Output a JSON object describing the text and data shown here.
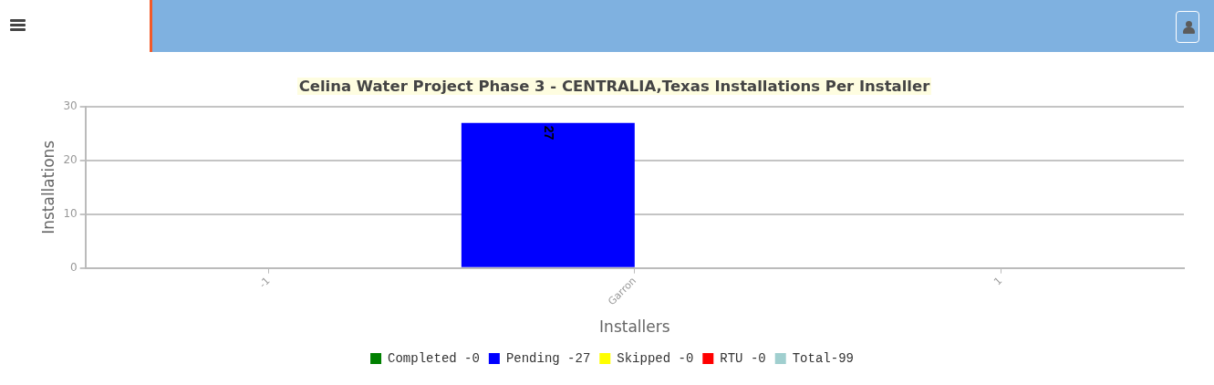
{
  "chart_data": {
    "type": "bar",
    "title": "Celina Water Project Phase 3 - CENTRALIA,Texas Installations Per Installer",
    "xlabel": "Installers",
    "ylabel": "Installations",
    "categories": [
      "-1",
      "Garron",
      "1"
    ],
    "series": [
      {
        "name": "Completed -0",
        "color": "#008000",
        "values": [
          null,
          null,
          null
        ]
      },
      {
        "name": "Pending -27",
        "color": "#0000ff",
        "values": [
          null,
          27,
          null
        ]
      },
      {
        "name": "Skipped -0",
        "color": "#ffff00",
        "values": [
          null,
          null,
          null
        ]
      },
      {
        "name": "RTU -0",
        "color": "#ff0000",
        "values": [
          null,
          null,
          null
        ]
      },
      {
        "name": "Total-99",
        "color": "#a0cfcf",
        "values": [
          null,
          null,
          null
        ]
      }
    ],
    "ylim": [
      0,
      30
    ],
    "yticks": [
      0,
      10,
      20,
      30
    ],
    "grid": "y",
    "legend": "bottom",
    "data_labels": true
  }
}
